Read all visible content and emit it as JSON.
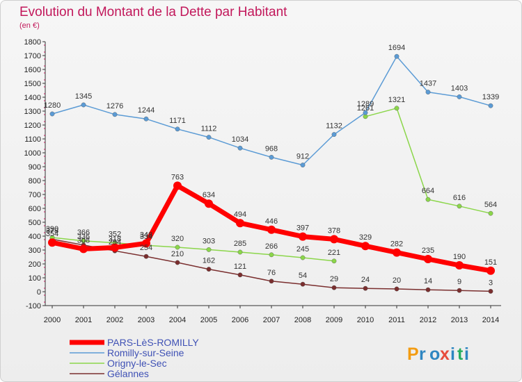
{
  "chart_data": {
    "type": "line",
    "title": "Evolution du Montant de la Dette par Habitant",
    "subtitle": "(en €)",
    "x": [
      "2000",
      "2001",
      "2002",
      "2003",
      "2004",
      "2005",
      "2006",
      "2007",
      "2008",
      "2009",
      "2010",
      "2011",
      "2012",
      "2013",
      "2014"
    ],
    "ylim": [
      -100,
      1800
    ],
    "yticks": [
      -100,
      0,
      100,
      200,
      300,
      400,
      500,
      600,
      700,
      800,
      900,
      1000,
      1100,
      1200,
      1300,
      1400,
      1500,
      1600,
      1700,
      1800
    ],
    "grid": false,
    "legend_placement": "bottom-left",
    "series": [
      {
        "name": "PARS-LèS-ROMILLY",
        "color": "#ff0000",
        "values": [
          354,
          308,
          318,
          348,
          763,
          634,
          494,
          446,
          397,
          378,
          329,
          282,
          235,
          190,
          151
        ]
      },
      {
        "name": "Romilly-sur-Seine",
        "color": "#5b9bd5",
        "values": [
          1280,
          1345,
          1276,
          1244,
          1171,
          1112,
          1034,
          968,
          912,
          1132,
          1289,
          1694,
          1437,
          1403,
          1339
        ]
      },
      {
        "name": "Origny-le-Sec",
        "color": "#8bd64a",
        "values": [
          390,
          366,
          352,
          334,
          320,
          303,
          285,
          266,
          245,
          221,
          1261,
          1321,
          664,
          616,
          564
        ]
      },
      {
        "name": "Gélannes",
        "color": "#7a2e2e",
        "values": [
          378,
          336,
          294,
          254,
          210,
          162,
          121,
          76,
          54,
          29,
          24,
          20,
          14,
          9,
          3
        ]
      }
    ]
  },
  "brand": {
    "logo_text": "Proxiti"
  }
}
